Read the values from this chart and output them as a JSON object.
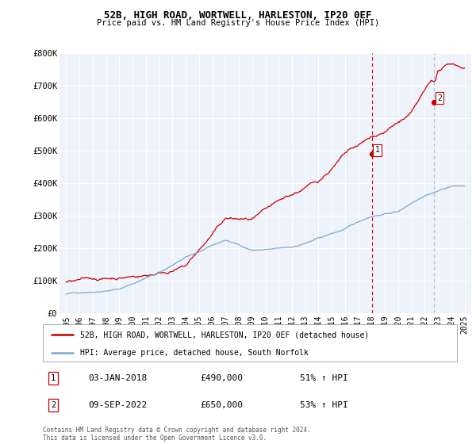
{
  "title": "52B, HIGH ROAD, WORTWELL, HARLESTON, IP20 0EF",
  "subtitle": "Price paid vs. HM Land Registry's House Price Index (HPI)",
  "ylim": [
    0,
    800000
  ],
  "yticks": [
    0,
    100000,
    200000,
    300000,
    400000,
    500000,
    600000,
    700000,
    800000
  ],
  "ytick_labels": [
    "£0",
    "£100K",
    "£200K",
    "£300K",
    "£400K",
    "£500K",
    "£600K",
    "£700K",
    "£800K"
  ],
  "background_color": "#ffffff",
  "plot_bg_color": "#eef2fa",
  "grid_color": "#ffffff",
  "line1_color": "#cc0000",
  "line2_color": "#7aaad0",
  "vline1_color": "#cc0000",
  "vline2_color": "#aabbdd",
  "transaction1_x": 2018.01,
  "transaction1_y": 490000,
  "transaction2_x": 2022.69,
  "transaction2_y": 650000,
  "legend_line1": "52B, HIGH ROAD, WORTWELL, HARLESTON, IP20 0EF (detached house)",
  "legend_line2": "HPI: Average price, detached house, South Norfolk",
  "annotation1_date": "03-JAN-2018",
  "annotation1_price": "£490,000",
  "annotation1_hpi": "51% ↑ HPI",
  "annotation2_date": "09-SEP-2022",
  "annotation2_price": "£650,000",
  "annotation2_hpi": "53% ↑ HPI",
  "footer": "Contains HM Land Registry data © Crown copyright and database right 2024.\nThis data is licensed under the Open Government Licence v3.0.",
  "xmin": 1994.5,
  "xmax": 2025.5,
  "xticks": [
    1995,
    1996,
    1997,
    1998,
    1999,
    2000,
    2001,
    2002,
    2003,
    2004,
    2005,
    2006,
    2007,
    2008,
    2009,
    2010,
    2011,
    2012,
    2013,
    2014,
    2015,
    2016,
    2017,
    2018,
    2019,
    2020,
    2021,
    2022,
    2023,
    2024,
    2025
  ]
}
